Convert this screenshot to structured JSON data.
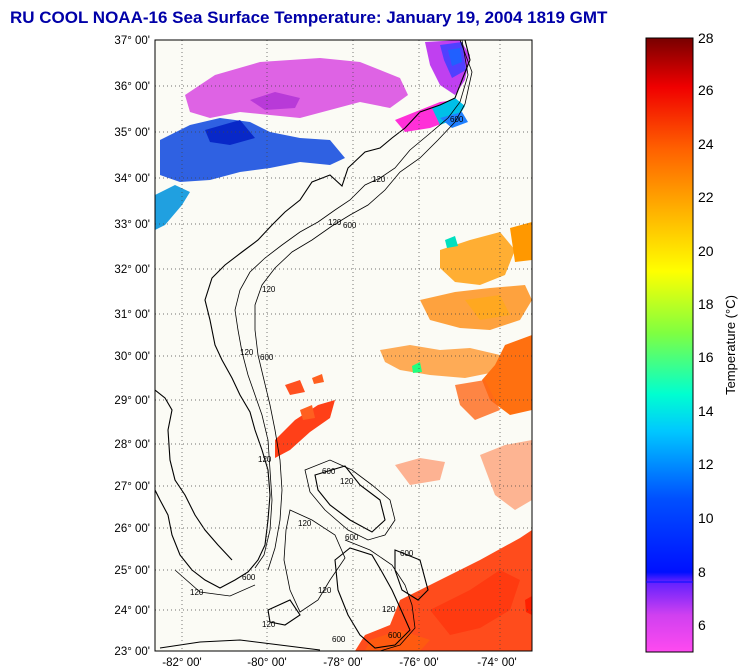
{
  "title": "RU COOL  NOAA-16  Sea Surface Temperature:  January 19, 2004 1819 GMT",
  "map": {
    "lat_labels": [
      "37° 00'",
      "36° 00'",
      "35° 00'",
      "34° 00'",
      "33° 00'",
      "32° 00'",
      "31° 00'",
      "30° 00'",
      "29° 00'",
      "28° 00'",
      "27° 00'",
      "26° 00'",
      "25° 00'",
      "24° 00'",
      "23° 00'"
    ],
    "lon_labels": [
      "-82° 00'",
      "-80° 00'",
      "-78° 00'",
      "-76° 00'",
      "-74° 00'"
    ],
    "isobath_labels": [
      "120",
      "600"
    ],
    "colors": {
      "land": "#fbfbf5",
      "frame": "#000000",
      "grid": "#444444"
    }
  },
  "colorbar": {
    "label": "Temperature (°C)",
    "ticks": [
      "28",
      "26",
      "24",
      "22",
      "20",
      "18",
      "16",
      "14",
      "12",
      "10",
      "8",
      "6"
    ],
    "range": [
      5,
      28
    ]
  }
}
